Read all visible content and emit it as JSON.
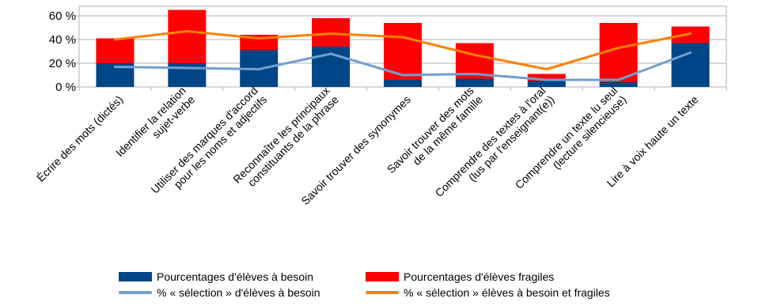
{
  "chart_data": {
    "type": "bar",
    "stacked": true,
    "categories": [
      [
        "Écrire des mots (dictés)"
      ],
      [
        "Identifier la relation",
        "sujet-verbe"
      ],
      [
        "Utiliser des marques d'accord",
        "pour les noms et adjectifs"
      ],
      [
        "Reconnaître les principaux",
        "constituants de la phrase"
      ],
      [
        "Savoir trouver des synonymes"
      ],
      [
        "Savoir trouver des mots",
        "de la même famille"
      ],
      [
        "Comprendre des textes à l'oral",
        "(lus par l'enseignant(e))"
      ],
      [
        "Comprendre un texte lu seul",
        "(lecture silencieuse)"
      ],
      [
        "Lire à voix haute un texte"
      ]
    ],
    "series": [
      {
        "name": "Pourcentages d'élèves à besoin",
        "kind": "bar",
        "color": "#004586",
        "values": [
          20,
          20,
          31,
          34,
          6,
          7,
          5,
          4,
          37
        ]
      },
      {
        "name": "Pourcentages d'élèves fragiles",
        "kind": "bar",
        "color": "#ff0000",
        "values": [
          21,
          45,
          13,
          24,
          48,
          30,
          6,
          50,
          14
        ]
      },
      {
        "name": "% « sélection » d'élèves à besoin",
        "kind": "line",
        "color": "#729fcf",
        "values": [
          17,
          16,
          15,
          28,
          10,
          11,
          6,
          6,
          29
        ]
      },
      {
        "name": "% « sélection » élèves à besoin et fragiles",
        "kind": "line",
        "color": "#ff8000",
        "values": [
          40,
          47,
          41,
          45,
          42,
          27,
          15,
          33,
          45
        ]
      }
    ],
    "yticks": [
      "0 %",
      "20 %",
      "40 %",
      "60 %"
    ],
    "ylim": [
      0,
      68
    ],
    "grid": true,
    "legend": "bottom"
  }
}
